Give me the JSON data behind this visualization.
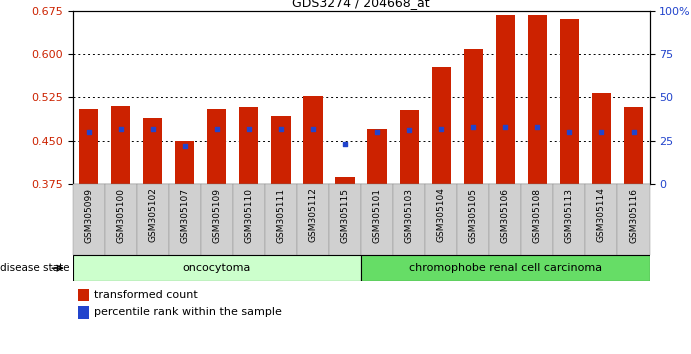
{
  "title": "GDS3274 / 204668_at",
  "samples": [
    "GSM305099",
    "GSM305100",
    "GSM305102",
    "GSM305107",
    "GSM305109",
    "GSM305110",
    "GSM305111",
    "GSM305112",
    "GSM305115",
    "GSM305101",
    "GSM305103",
    "GSM305104",
    "GSM305105",
    "GSM305106",
    "GSM305108",
    "GSM305113",
    "GSM305114",
    "GSM305116"
  ],
  "transformed_count": [
    0.505,
    0.51,
    0.49,
    0.45,
    0.505,
    0.508,
    0.493,
    0.527,
    0.387,
    0.47,
    0.503,
    0.578,
    0.608,
    0.668,
    0.668,
    0.66,
    0.533,
    0.508
  ],
  "percentile_rank": [
    30,
    32,
    32,
    22,
    32,
    32,
    32,
    32,
    23,
    30,
    31,
    32,
    33,
    33,
    33,
    30,
    30,
    30
  ],
  "ylim_left": [
    0.375,
    0.675
  ],
  "ylim_right": [
    0,
    100
  ],
  "yticks_left": [
    0.375,
    0.45,
    0.525,
    0.6,
    0.675
  ],
  "yticks_right": [
    0,
    25,
    50,
    75,
    100
  ],
  "bar_color": "#cc2200",
  "dot_color": "#2244cc",
  "oncocytoma_count": 9,
  "chromophobe_count": 9,
  "group1_label": "oncocytoma",
  "group2_label": "chromophobe renal cell carcinoma",
  "group1_color": "#ccffcc",
  "group2_color": "#66dd66",
  "disease_state_label": "disease state",
  "legend_item1": "transformed count",
  "legend_item2": "percentile rank within the sample",
  "bar_width": 0.6,
  "base_value": 0.375
}
